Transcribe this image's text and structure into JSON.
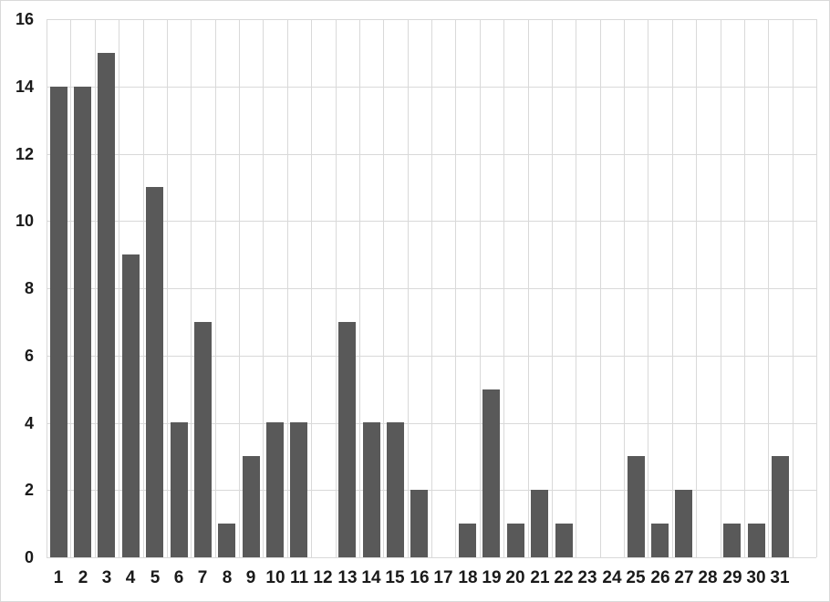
{
  "chart_data": {
    "type": "bar",
    "title": "",
    "xlabel": "",
    "ylabel": "",
    "categories": [
      "1",
      "2",
      "3",
      "4",
      "5",
      "6",
      "7",
      "8",
      "9",
      "10",
      "11",
      "12",
      "13",
      "14",
      "15",
      "16",
      "17",
      "18",
      "19",
      "20",
      "21",
      "22",
      "23",
      "24",
      "25",
      "26",
      "27",
      "28",
      "29",
      "30",
      "31"
    ],
    "values": [
      14,
      14,
      15,
      9,
      11,
      4,
      7,
      1,
      3,
      4,
      4,
      0,
      7,
      4,
      4,
      2,
      0,
      1,
      5,
      1,
      2,
      1,
      0,
      0,
      3,
      1,
      2,
      0,
      1,
      1,
      3
    ],
    "ylim": [
      0,
      16
    ],
    "yticks": [
      0,
      2,
      4,
      6,
      8,
      10,
      12,
      14,
      16
    ],
    "grid": "horizontal-and-vertical",
    "legend": "none",
    "extra_empty_slots_right": 1,
    "colors": {
      "bar": "#595959",
      "gridline": "#d9d9d9",
      "tick_label": "#1a1a1a",
      "background": "#ffffff",
      "frame_border": "#d9d9d9"
    }
  }
}
